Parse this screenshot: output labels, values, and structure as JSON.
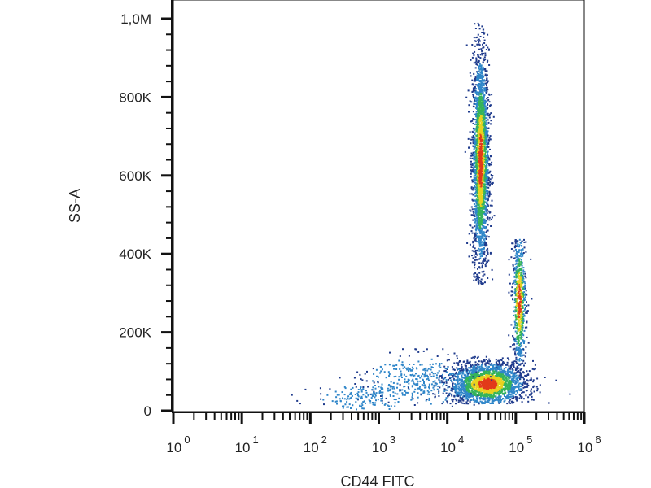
{
  "chart_data": {
    "type": "scatter",
    "title": "",
    "xlabel": "CD44 FITC",
    "ylabel": "SS-A",
    "x_scale": "log",
    "xlim": [
      1,
      1000000
    ],
    "ylim": [
      0,
      1000000
    ],
    "grid": false,
    "legend": "none",
    "x_ticks": [
      {
        "base": "10",
        "exp": "0",
        "value": 1
      },
      {
        "base": "10",
        "exp": "1",
        "value": 10
      },
      {
        "base": "10",
        "exp": "2",
        "value": 100
      },
      {
        "base": "10",
        "exp": "3",
        "value": 1000
      },
      {
        "base": "10",
        "exp": "4",
        "value": 10000
      },
      {
        "base": "10",
        "exp": "5",
        "value": 100000
      },
      {
        "base": "10",
        "exp": "6",
        "value": 1000000
      }
    ],
    "y_ticks": [
      {
        "label": "0",
        "value": 0
      },
      {
        "label": "200K",
        "value": 200000
      },
      {
        "label": "400K",
        "value": 400000
      },
      {
        "label": "600K",
        "value": 600000
      },
      {
        "label": "800K",
        "value": 800000
      },
      {
        "label": "1,0M",
        "value": 1000000
      }
    ],
    "colors": {
      "density_low": "#1e3a8c",
      "density_mid_low": "#2f86c9",
      "density_mid": "#35b35a",
      "density_mid_high": "#e8d21f",
      "density_high": "#e23a1a",
      "axis": "#111111"
    },
    "populations": [
      {
        "x_center": 30000,
        "y_center": 640000,
        "x_spread_log": 0.06,
        "y_spread": 140000,
        "y_range": [
          320000,
          1000000
        ],
        "points": 2600
      },
      {
        "x_center": 38000,
        "y_center": 70000,
        "x_spread_log": 0.28,
        "y_spread": 28000,
        "y_range": [
          20000,
          140000
        ],
        "points": 2200
      },
      {
        "x_center": 110000,
        "y_center": 280000,
        "x_spread_log": 0.05,
        "y_spread": 90000,
        "y_range": [
          80000,
          450000
        ],
        "points": 700
      },
      {
        "x_center": 4000,
        "y_center": 80000,
        "x_spread_log": 0.4,
        "y_spread": 35000,
        "y_range": [
          10000,
          160000
        ],
        "points": 350
      },
      {
        "x_center": 600,
        "y_center": 35000,
        "x_spread_log": 0.35,
        "y_spread": 20000,
        "y_range": [
          5000,
          100000
        ],
        "points": 180
      }
    ]
  }
}
